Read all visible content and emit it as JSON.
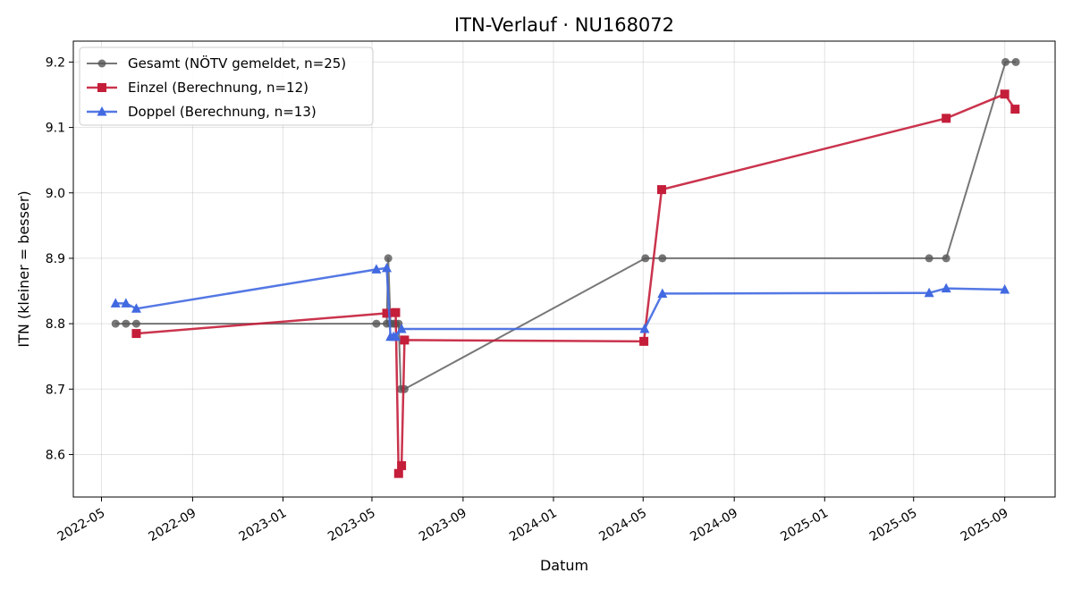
{
  "chart_data": {
    "type": "line",
    "title": "ITN-Verlauf · NU168072",
    "xlabel": "Datum",
    "ylabel": "ITN  (kleiner = besser)",
    "x_ticks": [
      "2022-05",
      "2022-09",
      "2023-01",
      "2023-05",
      "2023-09",
      "2024-01",
      "2024-05",
      "2024-09",
      "2025-01",
      "2025-05",
      "2025-09"
    ],
    "y_ticks": [
      8.6,
      8.7,
      8.8,
      8.9,
      9.0,
      9.1,
      9.2
    ],
    "xlim": [
      "2022-03-24",
      "2025-11-08"
    ],
    "ylim": [
      8.535,
      9.232
    ],
    "grid": true,
    "legend_position": "top-left",
    "series": [
      {
        "name": "Gesamt (NÖTV gemeldet, n=25)",
        "color": "#555555",
        "marker": "circle",
        "points": [
          [
            "2022-05-20",
            8.8
          ],
          [
            "2022-06-03",
            8.8
          ],
          [
            "2022-06-17",
            8.8
          ],
          [
            "2023-05-07",
            8.8
          ],
          [
            "2023-05-21",
            8.8
          ],
          [
            "2023-05-23",
            8.9
          ],
          [
            "2023-05-26",
            8.8
          ],
          [
            "2023-05-30",
            8.8
          ],
          [
            "2023-06-02",
            8.8
          ],
          [
            "2023-06-06",
            8.8
          ],
          [
            "2023-06-09",
            8.7
          ],
          [
            "2023-06-14",
            8.7
          ],
          [
            "2024-05-04",
            8.9
          ],
          [
            "2024-05-27",
            8.9
          ],
          [
            "2025-05-22",
            8.9
          ],
          [
            "2025-06-14",
            8.9
          ],
          [
            "2025-09-02",
            9.2
          ],
          [
            "2025-09-16",
            9.2
          ]
        ]
      },
      {
        "name": "Einzel (Berechnung, n=12)",
        "color": "#c41e3a",
        "marker": "square",
        "points": [
          [
            "2022-06-17",
            8.785
          ],
          [
            "2023-05-21",
            8.816
          ],
          [
            "2023-06-02",
            8.817
          ],
          [
            "2023-06-06",
            8.571
          ],
          [
            "2023-06-10",
            8.583
          ],
          [
            "2023-06-14",
            8.775
          ],
          [
            "2024-05-02",
            8.773
          ],
          [
            "2024-05-26",
            9.005
          ],
          [
            "2025-06-14",
            9.114
          ],
          [
            "2025-09-01",
            9.151
          ],
          [
            "2025-09-15",
            9.128
          ]
        ]
      },
      {
        "name": "Doppel (Berechnung, n=13)",
        "color": "#4169e1",
        "marker": "triangle",
        "points": [
          [
            "2022-05-20",
            8.831
          ],
          [
            "2022-06-03",
            8.831
          ],
          [
            "2022-06-17",
            8.823
          ],
          [
            "2023-05-07",
            8.883
          ],
          [
            "2023-05-21",
            8.885
          ],
          [
            "2023-05-26",
            8.78
          ],
          [
            "2023-05-30",
            8.78
          ],
          [
            "2023-06-02",
            8.78
          ],
          [
            "2023-06-10",
            8.792
          ],
          [
            "2024-05-03",
            8.792
          ],
          [
            "2024-05-27",
            8.846
          ],
          [
            "2025-05-22",
            8.847
          ],
          [
            "2025-06-14",
            8.854
          ],
          [
            "2025-09-01",
            8.852
          ]
        ]
      }
    ]
  }
}
